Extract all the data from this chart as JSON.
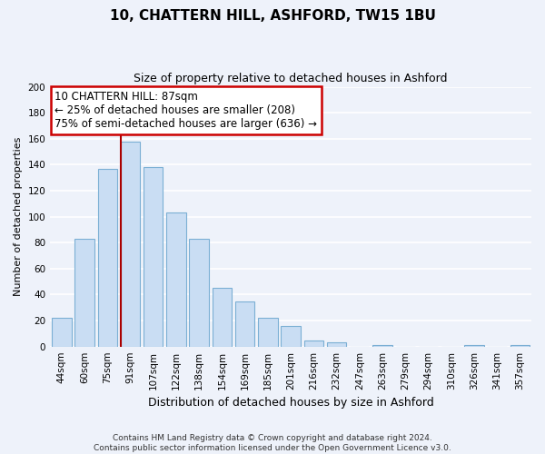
{
  "title": "10, CHATTERN HILL, ASHFORD, TW15 1BU",
  "subtitle": "Size of property relative to detached houses in Ashford",
  "xlabel": "Distribution of detached houses by size in Ashford",
  "ylabel": "Number of detached properties",
  "bar_labels": [
    "44sqm",
    "60sqm",
    "75sqm",
    "91sqm",
    "107sqm",
    "122sqm",
    "138sqm",
    "154sqm",
    "169sqm",
    "185sqm",
    "201sqm",
    "216sqm",
    "232sqm",
    "247sqm",
    "263sqm",
    "279sqm",
    "294sqm",
    "310sqm",
    "326sqm",
    "341sqm",
    "357sqm"
  ],
  "bar_values": [
    22,
    83,
    137,
    158,
    138,
    103,
    83,
    45,
    35,
    22,
    16,
    5,
    3,
    0,
    1,
    0,
    0,
    0,
    1,
    0,
    1
  ],
  "bar_color": "#c9ddf3",
  "bar_edge_color": "#7bafd4",
  "vline_x_index": 3,
  "marker_label": "10 CHATTERN HILL: 87sqm",
  "annotation_line1": "← 25% of detached houses are smaller (208)",
  "annotation_line2": "75% of semi-detached houses are larger (636) →",
  "annotation_box_color": "white",
  "annotation_box_edge": "#cc0000",
  "vline_color": "#aa0000",
  "ylim": [
    0,
    200
  ],
  "yticks": [
    0,
    20,
    40,
    60,
    80,
    100,
    120,
    140,
    160,
    180,
    200
  ],
  "footer_line1": "Contains HM Land Registry data © Crown copyright and database right 2024.",
  "footer_line2": "Contains public sector information licensed under the Open Government Licence v3.0.",
  "bg_color": "#eef2fa",
  "grid_color": "#ffffff",
  "title_fontsize": 11,
  "subtitle_fontsize": 9,
  "xlabel_fontsize": 9,
  "ylabel_fontsize": 8,
  "tick_fontsize": 7.5,
  "footer_fontsize": 6.5,
  "ann_fontsize": 8.5
}
